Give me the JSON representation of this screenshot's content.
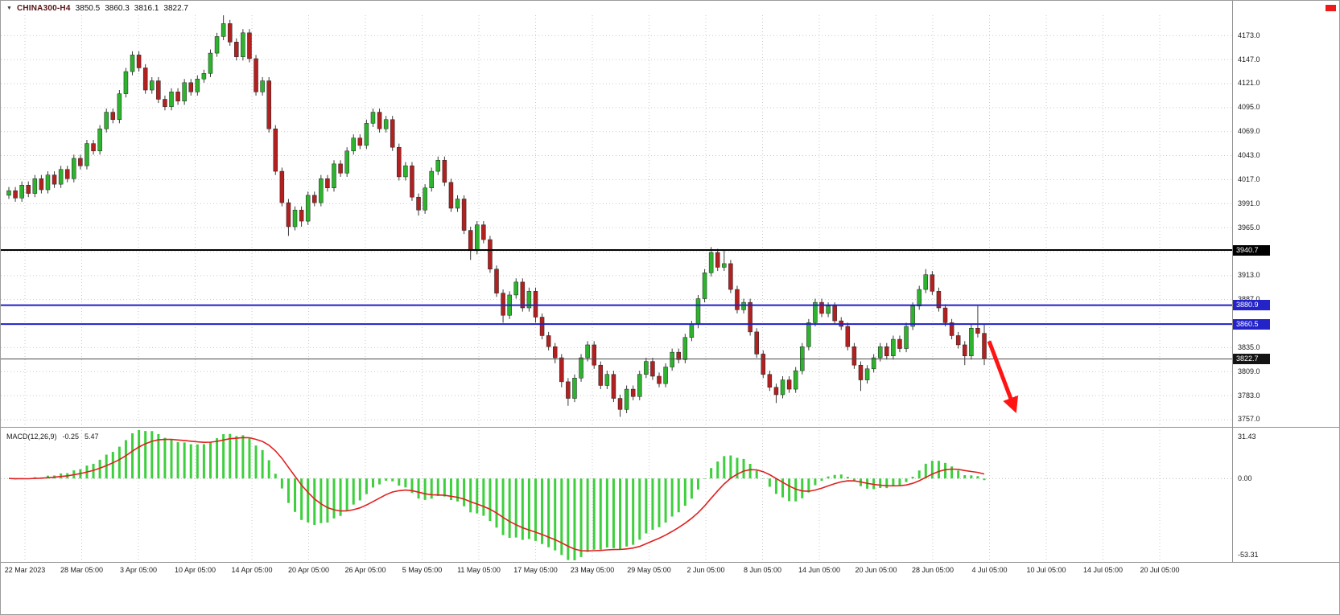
{
  "header": {
    "collapse_icon": "▼",
    "symbol": "CHINA300-H4",
    "open": "3850.5",
    "high": "3860.3",
    "low": "3816.1",
    "close": "3822.7"
  },
  "price_axis": {
    "ticks": [
      "4173.0",
      "4147.0",
      "4121.0",
      "4095.0",
      "4069.0",
      "4043.0",
      "4017.0",
      "3991.0",
      "3965.0",
      "3913.0",
      "3887.0",
      "3835.0",
      "3809.0",
      "3783.0",
      "3757.0"
    ],
    "badges": [
      {
        "text": "3940.7",
        "bg": "#000000"
      },
      {
        "text": "3880.9",
        "bg": "#2323c8"
      },
      {
        "text": "3860.5",
        "bg": "#2323c8"
      },
      {
        "text": "3822.7",
        "bg": "#141414"
      }
    ]
  },
  "time_axis": {
    "labels": [
      "22 Mar 2023",
      "28 Mar 05:00",
      "3 Apr 05:00",
      "10 Apr 05:00",
      "14 Apr 05:00",
      "20 Apr 05:00",
      "26 Apr 05:00",
      "5 May 05:00",
      "11 May 05:00",
      "17 May 05:00",
      "23 May 05:00",
      "29 May 05:00",
      "2 Jun 05:00",
      "8 Jun 05:00",
      "14 Jun 05:00",
      "20 Jun 05:00",
      "28 Jun 05:00",
      "4 Jul 05:00",
      "10 Jul 05:00",
      "14 Jul 05:00",
      "20 Jul 05:00"
    ]
  },
  "macd_panel": {
    "label": "MACD(12,26,9)",
    "macd_value": "-0.25",
    "signal_value": "5.47",
    "axis_labels": [
      "31.43",
      "0.00",
      "-53.31"
    ]
  },
  "colors": {
    "up": "#2db32d",
    "down": "#b22020",
    "wick": "#3a3a3a",
    "grid": "#c9c9c9",
    "hline_black": "#000000",
    "hline_blue": "#2020c8",
    "current_price_line": "#4a4a4a",
    "macd_histogram": "#3ecf3e",
    "macd_signal": "#e02020",
    "arrow": "#ff1414",
    "divider": "#909090"
  },
  "chart_data": {
    "type": "candlestick",
    "symbol": "CHINA300",
    "timeframe": "H4",
    "title": "CHINA300-H4 3850.5 3860.3 3816.1 3822.7",
    "ylim": [
      3750,
      4195
    ],
    "price_gridline_step": 26,
    "price_grid_min": 3757,
    "price_grid_max": 4173,
    "hlines": [
      {
        "price": 3940.7,
        "color_key": "hline_black",
        "width": 2
      },
      {
        "price": 3880.9,
        "color_key": "hline_blue",
        "width": 2
      },
      {
        "price": 3860.5,
        "color_key": "hline_blue",
        "width": 2
      },
      {
        "price": 3822.7,
        "color_key": "current_price_line",
        "width": 1
      }
    ],
    "annotation_arrow": {
      "direction": "down",
      "from_price": 3842,
      "to_price": 3768
    },
    "indicator": {
      "type": "MACD",
      "fast": 12,
      "slow": 26,
      "signal": 9,
      "macd_current": -0.25,
      "signal_current": 5.47,
      "panel_max": 31.43,
      "panel_min": -53.31
    },
    "candles": [
      [
        4000,
        4009,
        3996,
        4005
      ],
      [
        4005,
        4009,
        3993,
        3997
      ],
      [
        3997,
        4015,
        3993,
        4011
      ],
      [
        4011,
        4015,
        3998,
        4002
      ],
      [
        4002,
        4022,
        3998,
        4018
      ],
      [
        4018,
        4022,
        4002,
        4006
      ],
      [
        4006,
        4026,
        4002,
        4022
      ],
      [
        4022,
        4026,
        4008,
        4012
      ],
      [
        4012,
        4032,
        4008,
        4028
      ],
      [
        4028,
        4032,
        4014,
        4018
      ],
      [
        4018,
        4044,
        4014,
        4040
      ],
      [
        4040,
        4044,
        4028,
        4032
      ],
      [
        4032,
        4060,
        4028,
        4056
      ],
      [
        4056,
        4060,
        4044,
        4048
      ],
      [
        4048,
        4076,
        4044,
        4072
      ],
      [
        4072,
        4094,
        4068,
        4090
      ],
      [
        4090,
        4094,
        4078,
        4082
      ],
      [
        4082,
        4114,
        4078,
        4110
      ],
      [
        4110,
        4138,
        4106,
        4134
      ],
      [
        4134,
        4156,
        4130,
        4152
      ],
      [
        4152,
        4156,
        4134,
        4138
      ],
      [
        4138,
        4142,
        4110,
        4114
      ],
      [
        4114,
        4128,
        4110,
        4124
      ],
      [
        4124,
        4128,
        4100,
        4104
      ],
      [
        4104,
        4108,
        4092,
        4096
      ],
      [
        4096,
        4116,
        4092,
        4112
      ],
      [
        4112,
        4116,
        4098,
        4102
      ],
      [
        4102,
        4126,
        4098,
        4122
      ],
      [
        4122,
        4126,
        4108,
        4112
      ],
      [
        4112,
        4130,
        4108,
        4126
      ],
      [
        4126,
        4136,
        4122,
        4132
      ],
      [
        4132,
        4158,
        4128,
        4154
      ],
      [
        4154,
        4176,
        4150,
        4172
      ],
      [
        4172,
        4195,
        4168,
        4186
      ],
      [
        4186,
        4190,
        4162,
        4166
      ],
      [
        4166,
        4170,
        4146,
        4150
      ],
      [
        4150,
        4180,
        4146,
        4176
      ],
      [
        4176,
        4180,
        4144,
        4148
      ],
      [
        4148,
        4152,
        4108,
        4112
      ],
      [
        4112,
        4128,
        4108,
        4124
      ],
      [
        4124,
        4128,
        4068,
        4072
      ],
      [
        4072,
        4076,
        4022,
        4026
      ],
      [
        4026,
        4030,
        3988,
        3992
      ],
      [
        3992,
        3996,
        3956,
        3966
      ],
      [
        3966,
        3988,
        3962,
        3984
      ],
      [
        3984,
        3988,
        3966,
        3972
      ],
      [
        3972,
        4004,
        3968,
        4000
      ],
      [
        4000,
        4004,
        3988,
        3992
      ],
      [
        3992,
        4022,
        3988,
        4018
      ],
      [
        4018,
        4022,
        4004,
        4008
      ],
      [
        4008,
        4038,
        4004,
        4034
      ],
      [
        4034,
        4038,
        4020,
        4024
      ],
      [
        4024,
        4052,
        4020,
        4048
      ],
      [
        4048,
        4066,
        4044,
        4062
      ],
      [
        4062,
        4066,
        4050,
        4054
      ],
      [
        4054,
        4082,
        4050,
        4078
      ],
      [
        4078,
        4094,
        4074,
        4090
      ],
      [
        4090,
        4094,
        4068,
        4072
      ],
      [
        4072,
        4086,
        4068,
        4082
      ],
      [
        4082,
        4086,
        4048,
        4052
      ],
      [
        4052,
        4056,
        4016,
        4020
      ],
      [
        4020,
        4036,
        4016,
        4032
      ],
      [
        4032,
        4036,
        3994,
        3998
      ],
      [
        3998,
        4002,
        3978,
        3984
      ],
      [
        3984,
        4012,
        3980,
        4008
      ],
      [
        4008,
        4030,
        4004,
        4026
      ],
      [
        4026,
        4042,
        4022,
        4038
      ],
      [
        4038,
        4042,
        4010,
        4014
      ],
      [
        4014,
        4018,
        3982,
        3986
      ],
      [
        3986,
        4000,
        3982,
        3996
      ],
      [
        3996,
        4000,
        3958,
        3962
      ],
      [
        3962,
        3966,
        3930,
        3940
      ],
      [
        3940,
        3972,
        3936,
        3968
      ],
      [
        3968,
        3972,
        3948,
        3952
      ],
      [
        3952,
        3956,
        3916,
        3920
      ],
      [
        3920,
        3924,
        3890,
        3894
      ],
      [
        3894,
        3898,
        3862,
        3870
      ],
      [
        3870,
        3896,
        3866,
        3892
      ],
      [
        3892,
        3910,
        3888,
        3906
      ],
      [
        3906,
        3910,
        3874,
        3878
      ],
      [
        3878,
        3900,
        3874,
        3896
      ],
      [
        3896,
        3900,
        3862,
        3868
      ],
      [
        3868,
        3872,
        3844,
        3848
      ],
      [
        3848,
        3852,
        3832,
        3836
      ],
      [
        3836,
        3840,
        3818,
        3824
      ],
      [
        3824,
        3828,
        3792,
        3798
      ],
      [
        3798,
        3802,
        3772,
        3780
      ],
      [
        3780,
        3806,
        3776,
        3802
      ],
      [
        3802,
        3828,
        3798,
        3824
      ],
      [
        3824,
        3842,
        3820,
        3838
      ],
      [
        3838,
        3842,
        3812,
        3816
      ],
      [
        3816,
        3820,
        3790,
        3794
      ],
      [
        3794,
        3810,
        3790,
        3806
      ],
      [
        3806,
        3810,
        3776,
        3780
      ],
      [
        3780,
        3784,
        3760,
        3768
      ],
      [
        3768,
        3794,
        3764,
        3790
      ],
      [
        3790,
        3794,
        3778,
        3782
      ],
      [
        3782,
        3810,
        3778,
        3806
      ],
      [
        3806,
        3824,
        3802,
        3820
      ],
      [
        3820,
        3824,
        3800,
        3804
      ],
      [
        3804,
        3808,
        3792,
        3796
      ],
      [
        3796,
        3818,
        3792,
        3814
      ],
      [
        3814,
        3834,
        3810,
        3830
      ],
      [
        3830,
        3834,
        3818,
        3822
      ],
      [
        3822,
        3850,
        3818,
        3846
      ],
      [
        3846,
        3864,
        3842,
        3860
      ],
      [
        3860,
        3892,
        3856,
        3888
      ],
      [
        3888,
        3920,
        3884,
        3916
      ],
      [
        3916,
        3944,
        3912,
        3938
      ],
      [
        3938,
        3942,
        3918,
        3922
      ],
      [
        3922,
        3940,
        3918,
        3926
      ],
      [
        3926,
        3930,
        3894,
        3898
      ],
      [
        3898,
        3902,
        3872,
        3876
      ],
      [
        3876,
        3888,
        3872,
        3884
      ],
      [
        3884,
        3888,
        3848,
        3852
      ],
      [
        3852,
        3856,
        3824,
        3828
      ],
      [
        3828,
        3832,
        3802,
        3806
      ],
      [
        3806,
        3810,
        3788,
        3792
      ],
      [
        3792,
        3796,
        3775,
        3784
      ],
      [
        3784,
        3804,
        3780,
        3800
      ],
      [
        3800,
        3804,
        3786,
        3790
      ],
      [
        3790,
        3814,
        3786,
        3810
      ],
      [
        3810,
        3840,
        3806,
        3836
      ],
      [
        3836,
        3866,
        3832,
        3862
      ],
      [
        3862,
        3888,
        3858,
        3884
      ],
      [
        3884,
        3888,
        3868,
        3872
      ],
      [
        3872,
        3884,
        3868,
        3880
      ],
      [
        3880,
        3884,
        3860,
        3864
      ],
      [
        3864,
        3868,
        3854,
        3858
      ],
      [
        3858,
        3862,
        3832,
        3836
      ],
      [
        3836,
        3840,
        3812,
        3816
      ],
      [
        3816,
        3820,
        3788,
        3800
      ],
      [
        3800,
        3816,
        3796,
        3812
      ],
      [
        3812,
        3828,
        3808,
        3824
      ],
      [
        3824,
        3840,
        3820,
        3836
      ],
      [
        3836,
        3840,
        3822,
        3826
      ],
      [
        3826,
        3848,
        3822,
        3844
      ],
      [
        3844,
        3848,
        3830,
        3834
      ],
      [
        3834,
        3862,
        3830,
        3858
      ],
      [
        3858,
        3884,
        3854,
        3880
      ],
      [
        3880,
        3902,
        3876,
        3898
      ],
      [
        3898,
        3920,
        3894,
        3914
      ],
      [
        3914,
        3918,
        3892,
        3896
      ],
      [
        3896,
        3900,
        3874,
        3878
      ],
      [
        3878,
        3882,
        3858,
        3862
      ],
      [
        3862,
        3866,
        3844,
        3848
      ],
      [
        3848,
        3852,
        3834,
        3838
      ],
      [
        3838,
        3842,
        3816,
        3826
      ],
      [
        3826,
        3860,
        3822,
        3856
      ],
      [
        3856,
        3880,
        3846,
        3850.5
      ],
      [
        3850.5,
        3860.3,
        3816.1,
        3822.7
      ]
    ]
  }
}
